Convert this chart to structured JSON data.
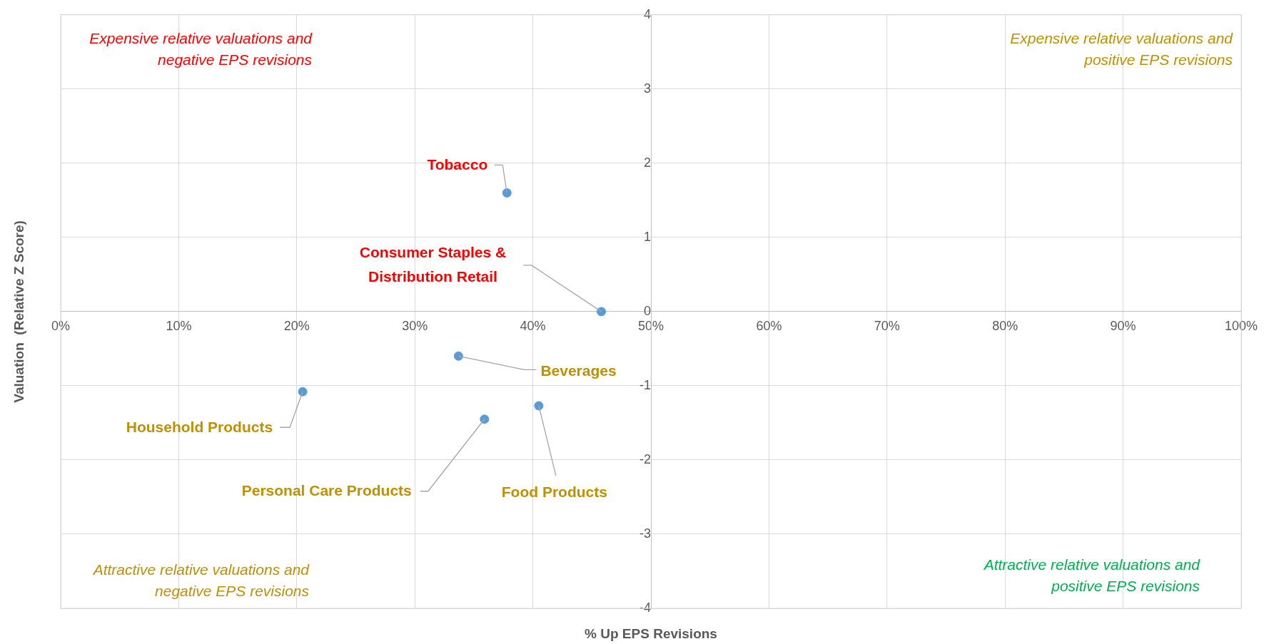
{
  "chart_data": {
    "type": "scatter",
    "xlabel": "% Up EPS Revisions",
    "ylabel": "Valuation  (Relative Z Score)",
    "series": [
      {
        "color": "#5b9bd5",
        "x": [
          37.8,
          45.8,
          33.7,
          20.5,
          35.9,
          40.5
        ],
        "values": [
          1.6,
          0.0,
          -0.6,
          -1.08,
          -1.45,
          -1.27
        ]
      }
    ],
    "xlim": [
      0,
      100
    ],
    "xticks": [
      {
        "value": 0,
        "label": "0%"
      },
      {
        "value": 10,
        "label": "10%"
      },
      {
        "value": 20,
        "label": "20%"
      },
      {
        "value": 30,
        "label": "30%"
      },
      {
        "value": 40,
        "label": "40%"
      },
      {
        "value": 50,
        "label": "50%"
      },
      {
        "value": 60,
        "label": "60%"
      },
      {
        "value": 70,
        "label": "70%"
      },
      {
        "value": 80,
        "label": "80%"
      },
      {
        "value": 90,
        "label": "90%"
      },
      {
        "value": 100,
        "label": "100%"
      }
    ],
    "ylim": [
      -4,
      4
    ],
    "yticks": [
      -4,
      -3,
      -2,
      -1,
      0,
      1,
      2,
      3,
      4
    ],
    "grid": true,
    "marker": "circle",
    "annotations": [
      "Expensive relative valuations and negative EPS revisions",
      "Expensive relative valuations and positive EPS revisions",
      "Attractive relative valuations and negative EPS revisions",
      "Attractive relative valuations and positive EPS revisions",
      {
        "text": "Tobacco",
        "x": 37.8,
        "y": 1.6
      },
      {
        "text": "Consumer Staples & Distribution Retail",
        "x": 45.8,
        "y": 0.0
      },
      {
        "text": "Beverages",
        "x": 33.7,
        "y": -0.6
      },
      {
        "text": "Household Products",
        "x": 20.5,
        "y": -1.08
      },
      {
        "text": "Personal Care Products",
        "x": 35.9,
        "y": -1.45
      },
      {
        "text": "Food Products",
        "x": 40.5,
        "y": -1.27
      }
    ]
  }
}
